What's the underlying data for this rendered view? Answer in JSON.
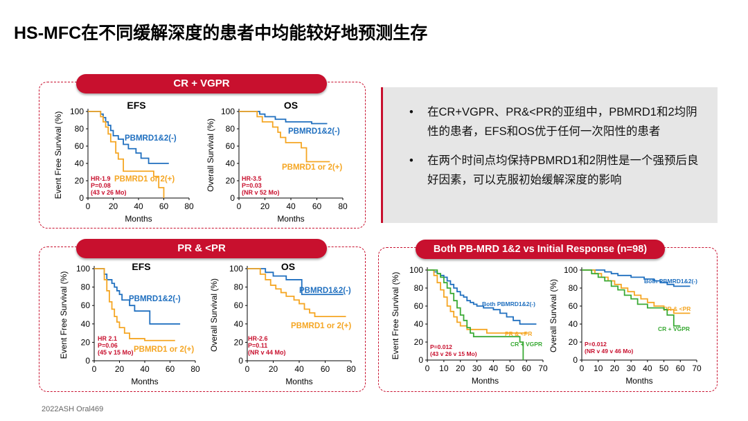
{
  "title": "HS-MFC在不同缓解深度的患者中均能较好地预测生存",
  "footer": "2022ASH Oral469",
  "groups": [
    {
      "label": "CR + VGPR"
    },
    {
      "label": "PR &  <PR"
    },
    {
      "label": "Both PB-MRD 1&2 vs Initial Response (n=98)"
    }
  ],
  "notes": [
    "在CR+VGPR、PR&<PR的亚组中，PBMRD1和2均阴性的患者，EFS和OS优于任何一次阳性的患者",
    "在两个时间点均保持PBMRD1和2阴性是一个强预后良好因素，可以克服初始缓解深度的影响"
  ],
  "bullet_symbol": "•",
  "colors": {
    "blue": "#1f6fbf",
    "orange": "#f5a623",
    "green": "#3aaa35",
    "red": "#c8102e"
  },
  "chart_data": [
    {
      "type": "line",
      "id": "cr-efs",
      "title": "EFS",
      "xlabel": "Months",
      "ylabel": "Event Free Survival (%)",
      "xlim": [
        0,
        80
      ],
      "ylim": [
        0,
        100
      ],
      "xticks": [
        0,
        20,
        40,
        60,
        80
      ],
      "yticks": [
        0,
        20,
        40,
        60,
        80,
        100
      ],
      "stats": [
        "HR-1.9",
        "P=0.08",
        "(43 v 26 Mo)"
      ],
      "series": [
        {
          "name": "PBMRD1&2(-)",
          "color": "#1f6fbf",
          "x": [
            0,
            6,
            10,
            12,
            14,
            16,
            18,
            20,
            24,
            28,
            32,
            38,
            42,
            48,
            64
          ],
          "y": [
            100,
            100,
            97,
            93,
            88,
            84,
            78,
            72,
            68,
            62,
            57,
            52,
            46,
            40,
            40
          ]
        },
        {
          "name": "PBMRD1  or 2(+)",
          "color": "#f5a623",
          "x": [
            0,
            6,
            10,
            12,
            14,
            16,
            18,
            22,
            24,
            28,
            46,
            52,
            54,
            56,
            58,
            60
          ],
          "y": [
            100,
            100,
            94,
            88,
            82,
            74,
            65,
            52,
            45,
            31,
            31,
            25,
            25,
            12,
            12,
            0
          ]
        }
      ]
    },
    {
      "type": "line",
      "id": "cr-os",
      "title": "OS",
      "xlabel": "Months",
      "ylabel": "Overall Survival (%)",
      "xlim": [
        0,
        80
      ],
      "ylim": [
        0,
        100
      ],
      "xticks": [
        0,
        20,
        40,
        60,
        80
      ],
      "yticks": [
        0,
        20,
        40,
        60,
        80,
        100
      ],
      "stats": [
        "HR-3.5",
        "P=0.03",
        "(NR v 52 Mo)"
      ],
      "series": [
        {
          "name": "PBMRD1&2(-)",
          "color": "#1f6fbf",
          "x": [
            0,
            10,
            16,
            20,
            24,
            28,
            32,
            36,
            40,
            44,
            52,
            56,
            68
          ],
          "y": [
            100,
            100,
            97,
            94,
            94,
            91,
            91,
            88,
            88,
            88,
            88,
            86,
            86
          ]
        },
        {
          "name": "PBMRD1 or 2(+)",
          "color": "#f5a623",
          "x": [
            0,
            10,
            14,
            18,
            22,
            26,
            30,
            32,
            36,
            44,
            48,
            52,
            56,
            62,
            70
          ],
          "y": [
            100,
            100,
            94,
            88,
            88,
            82,
            76,
            70,
            64,
            64,
            58,
            42,
            42,
            42,
            42
          ]
        }
      ]
    },
    {
      "type": "line",
      "id": "pr-efs",
      "title": "EFS",
      "xlabel": "Months",
      "ylabel": "Event Free Survival (%)",
      "xlim": [
        0,
        80
      ],
      "ylim": [
        0,
        100
      ],
      "xticks": [
        0,
        20,
        40,
        60,
        80
      ],
      "yticks": [
        0,
        20,
        40,
        60,
        80,
        100
      ],
      "stats": [
        "HR 2.1",
        "P=0.06",
        "(45 v 15 Mo)"
      ],
      "series": [
        {
          "name": "PBMRD1&2(-)",
          "color": "#1f6fbf",
          "x": [
            0,
            6,
            8,
            10,
            12,
            14,
            16,
            18,
            20,
            22,
            28,
            32,
            40,
            44,
            48,
            54,
            68
          ],
          "y": [
            100,
            100,
            94,
            88,
            88,
            84,
            80,
            76,
            72,
            66,
            60,
            54,
            54,
            40,
            40,
            40,
            40
          ]
        },
        {
          "name": "PBMRD1  or 2(+)",
          "color": "#f5a623",
          "x": [
            0,
            6,
            8,
            10,
            12,
            14,
            16,
            18,
            20,
            24,
            28,
            32,
            40,
            44,
            64
          ],
          "y": [
            100,
            100,
            88,
            76,
            64,
            56,
            48,
            42,
            36,
            30,
            24,
            24,
            22,
            22,
            22
          ]
        }
      ]
    },
    {
      "type": "line",
      "id": "pr-os",
      "title": "OS",
      "xlabel": "Months",
      "ylabel": "Overall Survival (%)",
      "xlim": [
        0,
        80
      ],
      "ylim": [
        0,
        100
      ],
      "xticks": [
        0,
        20,
        40,
        60,
        80
      ],
      "yticks": [
        0,
        20,
        40,
        60,
        80,
        100
      ],
      "stats": [
        "HR-2.6",
        "P=0.11",
        "(NR v 44 Mo)"
      ],
      "series": [
        {
          "name": "PBMRD1&2(-)",
          "color": "#1f6fbf",
          "x": [
            0,
            10,
            14,
            20,
            26,
            30,
            36,
            40,
            42,
            48,
            52,
            58,
            74
          ],
          "y": [
            100,
            100,
            96,
            92,
            92,
            88,
            88,
            88,
            72,
            72,
            72,
            72,
            72
          ]
        },
        {
          "name": "PBMRD1 or 2(+)",
          "color": "#f5a623",
          "x": [
            0,
            8,
            10,
            14,
            18,
            22,
            26,
            30,
            36,
            40,
            44,
            48,
            52,
            58,
            76
          ],
          "y": [
            100,
            100,
            94,
            88,
            82,
            78,
            74,
            70,
            66,
            62,
            56,
            52,
            48,
            48,
            48
          ]
        }
      ]
    },
    {
      "type": "line",
      "id": "both-efs",
      "title": "",
      "xlabel": "Months",
      "ylabel": "Event Free Survival (%)",
      "xlim": [
        0,
        70
      ],
      "ylim": [
        0,
        100
      ],
      "xticks": [
        0,
        10,
        20,
        30,
        40,
        50,
        60,
        70
      ],
      "yticks": [
        0,
        20,
        40,
        60,
        80,
        100
      ],
      "stats": [
        "P=0.012",
        "(43 v 26 v 15 Mo)"
      ],
      "series": [
        {
          "name": "Both PBMRD1&2(-)",
          "color": "#1f6fbf",
          "x": [
            0,
            4,
            6,
            8,
            10,
            12,
            14,
            16,
            18,
            20,
            22,
            24,
            26,
            28,
            30,
            34,
            40,
            44,
            48,
            52,
            56,
            62,
            66
          ],
          "y": [
            100,
            98,
            96,
            94,
            92,
            88,
            84,
            80,
            76,
            72,
            70,
            66,
            64,
            62,
            60,
            58,
            56,
            52,
            48,
            44,
            40,
            40,
            40
          ]
        },
        {
          "name": "PR & <PR",
          "color": "#f5a623",
          "x": [
            0,
            4,
            6,
            8,
            10,
            12,
            14,
            16,
            18,
            20,
            24,
            30,
            36,
            42,
            48,
            56,
            60
          ],
          "y": [
            100,
            94,
            86,
            78,
            70,
            60,
            54,
            48,
            42,
            38,
            34,
            34,
            30,
            30,
            30,
            30,
            30
          ]
        },
        {
          "name": "CR + VGPR",
          "color": "#3aaa35",
          "x": [
            0,
            6,
            8,
            10,
            12,
            14,
            16,
            18,
            20,
            22,
            24,
            26,
            28,
            30,
            40,
            50,
            56,
            58
          ],
          "y": [
            100,
            96,
            92,
            86,
            80,
            74,
            66,
            58,
            50,
            44,
            36,
            30,
            26,
            26,
            26,
            26,
            20,
            0
          ]
        }
      ]
    },
    {
      "type": "line",
      "id": "both-os",
      "title": "",
      "xlabel": "Months",
      "ylabel": "Overall Survival (%)",
      "xlim": [
        0,
        70
      ],
      "ylim": [
        0,
        100
      ],
      "xticks": [
        0,
        10,
        20,
        30,
        40,
        50,
        60,
        70
      ],
      "yticks": [
        0,
        20,
        40,
        60,
        80,
        100
      ],
      "stats": [
        "P=0.012",
        "(NR v 49 v 46 Mo)"
      ],
      "series": [
        {
          "name": "Both PBMRD1&2(-)",
          "color": "#1f6fbf",
          "x": [
            0,
            10,
            14,
            18,
            22,
            30,
            38,
            44,
            48,
            52,
            56,
            66
          ],
          "y": [
            100,
            100,
            98,
            96,
            94,
            92,
            90,
            88,
            86,
            84,
            82,
            82
          ]
        },
        {
          "name": "PR & <PR",
          "color": "#f5a623",
          "x": [
            0,
            8,
            12,
            16,
            20,
            24,
            28,
            32,
            36,
            40,
            44,
            50,
            56,
            60,
            66
          ],
          "y": [
            100,
            96,
            92,
            88,
            84,
            80,
            76,
            72,
            68,
            64,
            60,
            56,
            52,
            52,
            52
          ]
        },
        {
          "name": "CR + VGPR",
          "color": "#3aaa35",
          "x": [
            0,
            6,
            10,
            14,
            18,
            22,
            26,
            30,
            34,
            40,
            48,
            50,
            52,
            56,
            60
          ],
          "y": [
            100,
            96,
            92,
            88,
            82,
            78,
            72,
            68,
            62,
            58,
            58,
            56,
            50,
            38,
            38
          ]
        }
      ]
    }
  ]
}
